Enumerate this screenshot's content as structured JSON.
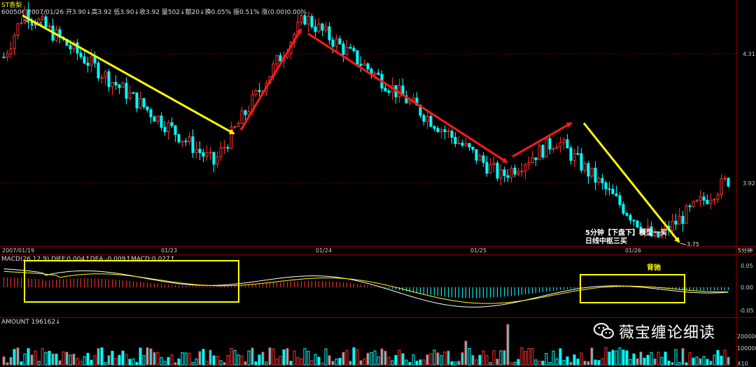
{
  "header": {
    "title": "ST香梨",
    "info": "600506  2007/01/26  开3.90↓高3.92 低3.90↓收3.92 量502↓额20↓换0.05% 振0.51% 涨(0.00)0.00%"
  },
  "indicator_headers": {
    "macd": "MACD(26,12,9)  DIFF:0.004↑DEA:-0.009↑MACD:0.027↑",
    "amount": "AMOUNT 196162↓"
  },
  "watermark": {
    "text": "薇宝缠论细读"
  },
  "annotations": {
    "setup_line1": "5分钟【下盘下】模型一买",
    "setup_line2": "日线中枢三买",
    "divergence": "背驰"
  },
  "colors": {
    "up": "#ff3030",
    "down": "#00ffff",
    "arrow_yellow": "#ffff00",
    "arrow_red": "#ff1a1a",
    "box": "#ffff00",
    "grid": "#8b0000",
    "diff_line": "#ffffff",
    "dea_line": "#ffff00"
  },
  "chart_data": [
    {
      "type": "candlestick",
      "period": "5分钟",
      "dates": [
        "2007/01/19",
        "01/23",
        "01/24",
        "01/25",
        "01/26"
      ],
      "price_ticks": [
        "4.31",
        "3.92"
      ],
      "marked_prices": {
        "high": "4.44",
        "low": "3.75"
      },
      "key_points": [
        4.44,
        3.98,
        4.42,
        3.94,
        4.05,
        3.75,
        3.93
      ],
      "arrows": [
        {
          "color": "yellow",
          "from": 4.44,
          "to": 3.98
        },
        {
          "color": "red",
          "from": 3.98,
          "to": 4.42
        },
        {
          "color": "red",
          "from": 4.42,
          "to": 3.94
        },
        {
          "color": "red",
          "from": 3.94,
          "to": 4.05
        },
        {
          "color": "yellow",
          "from": 4.05,
          "to": 3.75
        }
      ]
    },
    {
      "type": "macd",
      "y_ticks": [
        "0.05",
        "0.00",
        "-0.05"
      ],
      "diff": 0.004,
      "dea": -0.009,
      "macd": 0.027
    },
    {
      "type": "bar",
      "name": "AMOUNT",
      "value": 196162,
      "y_ticks": [
        "200000",
        "100000"
      ],
      "unit": "X10"
    }
  ]
}
